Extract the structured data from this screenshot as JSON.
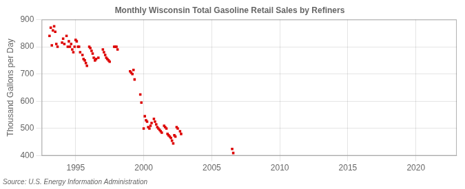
{
  "chart_data": {
    "type": "scatter",
    "title": "Monthly Wisconsin Total Gasoline Retail Sales by Refiners",
    "ylabel": "Thousand Gallons per Day",
    "annotation": "Source: U.S. Energy Information Administration",
    "x": [
      1993.08,
      1993.17,
      1993.25,
      1993.33,
      1993.42,
      1993.5,
      1993.58,
      1993.67,
      1994.0,
      1994.08,
      1994.17,
      1994.33,
      1994.42,
      1994.5,
      1994.58,
      1994.67,
      1994.75,
      1994.83,
      1994.92,
      1995.0,
      1995.08,
      1995.17,
      1995.25,
      1995.33,
      1995.5,
      1995.58,
      1995.67,
      1995.75,
      1995.83,
      1996.0,
      1996.08,
      1996.17,
      1996.25,
      1996.33,
      1996.42,
      1996.5,
      1996.67,
      1997.0,
      1997.08,
      1997.17,
      1997.25,
      1997.33,
      1997.42,
      1997.5,
      1997.83,
      1997.92,
      1998.0,
      1998.08,
      1999.0,
      1999.08,
      1999.17,
      1999.25,
      1999.33,
      1999.75,
      1999.83,
      2000.0,
      2000.08,
      2000.17,
      2000.25,
      2000.33,
      2000.42,
      2000.5,
      2000.58,
      2000.75,
      2000.83,
      2000.92,
      2001.0,
      2001.08,
      2001.17,
      2001.25,
      2001.33,
      2001.5,
      2001.58,
      2001.67,
      2001.75,
      2001.83,
      2001.92,
      2002.0,
      2002.08,
      2002.17,
      2002.25,
      2002.33,
      2002.42,
      2002.5,
      2002.67,
      2002.75,
      2006.5,
      2006.58
    ],
    "values": [
      840,
      870,
      805,
      860,
      875,
      855,
      810,
      800,
      815,
      830,
      810,
      840,
      800,
      820,
      800,
      810,
      790,
      780,
      800,
      825,
      820,
      800,
      800,
      780,
      770,
      755,
      750,
      740,
      730,
      800,
      795,
      785,
      775,
      760,
      750,
      755,
      760,
      790,
      780,
      770,
      760,
      755,
      750,
      745,
      800,
      800,
      800,
      790,
      710,
      705,
      700,
      715,
      680,
      625,
      595,
      500,
      545,
      530,
      525,
      505,
      500,
      510,
      520,
      535,
      525,
      515,
      505,
      500,
      495,
      490,
      485,
      510,
      505,
      500,
      480,
      475,
      470,
      465,
      455,
      445,
      475,
      470,
      505,
      500,
      490,
      480,
      425,
      410
    ],
    "color": "#dd0000",
    "marker": "square",
    "xlim": [
      1992.5,
      2023
    ],
    "ylim": [
      400,
      900
    ],
    "xticks": [
      1995,
      2000,
      2005,
      2010,
      2015,
      2020
    ],
    "yticks": [
      400,
      500,
      600,
      700,
      800,
      900
    ],
    "grid": true
  }
}
